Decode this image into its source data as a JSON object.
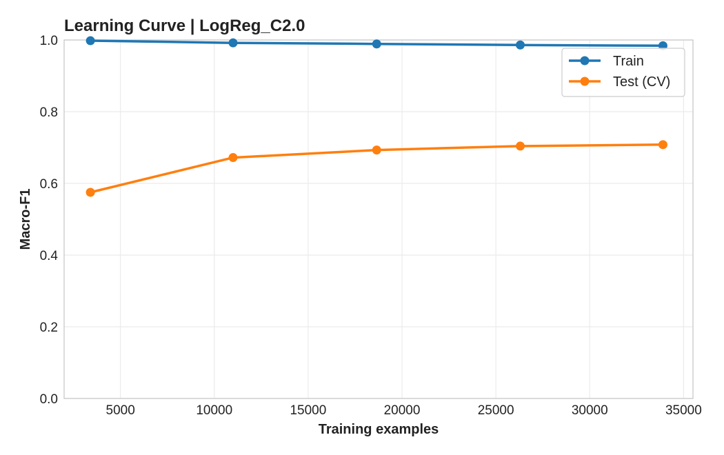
{
  "chart_data": {
    "type": "line",
    "title": "Learning Curve | LogReg_C2.0",
    "xlabel": "Training examples",
    "ylabel": "Macro-F1",
    "xlim": [
      2000,
      35500
    ],
    "ylim": [
      0.0,
      1.0
    ],
    "xticks": [
      5000,
      10000,
      15000,
      20000,
      25000,
      30000,
      35000
    ],
    "yticks": [
      0.0,
      0.2,
      0.4,
      0.6,
      0.8,
      1.0
    ],
    "xtick_labels": [
      "5000",
      "10000",
      "15000",
      "20000",
      "25000",
      "30000",
      "35000"
    ],
    "ytick_labels": [
      "0.0",
      "0.2",
      "0.4",
      "0.6",
      "0.8",
      "1.0"
    ],
    "grid": true,
    "legend_position": "top-right",
    "x": [
      3400,
      11000,
      18650,
      26300,
      33900
    ],
    "series": [
      {
        "name": "Train",
        "color": "#1f77b4",
        "values": [
          0.998,
          0.992,
          0.989,
          0.986,
          0.984
        ]
      },
      {
        "name": "Test (CV)",
        "color": "#ff7f0e",
        "values": [
          0.575,
          0.672,
          0.693,
          0.704,
          0.708
        ]
      }
    ]
  }
}
